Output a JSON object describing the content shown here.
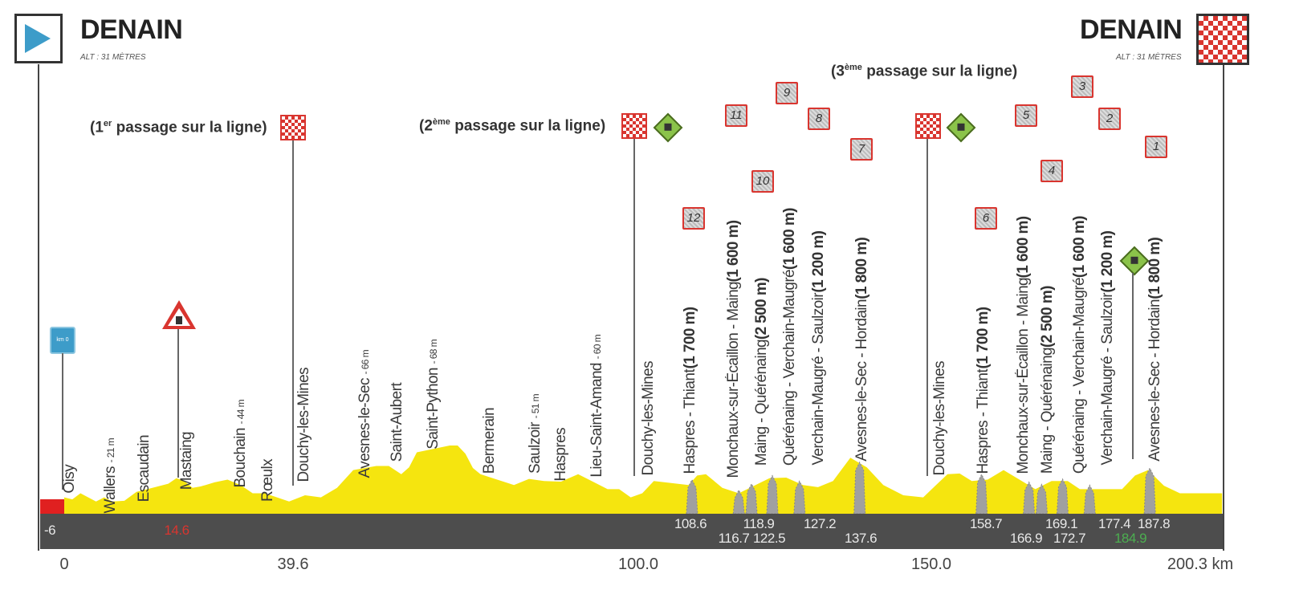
{
  "start": {
    "city": "DENAIN",
    "alt": "ALT : 31 MÈTRES"
  },
  "finish": {
    "city": "DENAIN",
    "alt": "ALT : 31 MÈTRES"
  },
  "passages": [
    {
      "pre": "(1",
      "sup": "er",
      "post": " passage sur la ligne)"
    },
    {
      "pre": "(2",
      "sup": "ème",
      "post": " passage sur la ligne)"
    },
    {
      "pre": "(3",
      "sup": "ème",
      "post": " passage sur la ligne)"
    }
  ],
  "km0_sign": "km 0",
  "towns": [
    "Oisy",
    "Wallers",
    "- 21 m",
    "Escaudain",
    "Mastaing",
    "Bouchain",
    "- 44 m",
    "Rœulx",
    "Douchy-les-Mines",
    "Avesnes-le-Sec",
    "- 66 m",
    "Saint-Aubert",
    "Saint-Python",
    "- 68 m",
    "Bermerain",
    "Saulzoir",
    "- 51 m",
    "Haspres",
    "Lieu-Saint-Amand",
    "- 60 m",
    "Douchy-les-Mines",
    "Douchy-les-Mines"
  ],
  "sectors": [
    {
      "num": "12",
      "name": "Haspres - Thiant",
      "len": "(1 700 m)"
    },
    {
      "num": "11",
      "name": "Monchaux-sur-Écaillon - Maing",
      "len": "(1 600 m)"
    },
    {
      "num": "10",
      "name": "Maing - Quérénaing",
      "len": "(2 500 m)"
    },
    {
      "num": "9",
      "name": "Quérénaing - Verchain-Maugré",
      "len": "(1 600 m)"
    },
    {
      "num": "8",
      "name": "Verchain-Maugré - Saulzoir",
      "len": "(1 200 m)"
    },
    {
      "num": "7",
      "name": "Avesnes-le-Sec - Hordain",
      "len": "(1 800 m)"
    },
    {
      "num": "6",
      "name": "Haspres - Thiant",
      "len": "(1 700 m)"
    },
    {
      "num": "5",
      "name": "Monchaux-sur-Écaillon - Maing",
      "len": "(1 600 m)"
    },
    {
      "num": "4",
      "name": "Maing - Quérénaing",
      "len": "(2 500 m)"
    },
    {
      "num": "3",
      "name": "Quérénaing - Verchain-Maugré",
      "len": "(1 600 m)"
    },
    {
      "num": "2",
      "name": "Verchain-Maugré - Saulzoir",
      "len": "(1 200 m)"
    },
    {
      "num": "1",
      "name": "Avesnes-le-Sec - Hordain",
      "len": "(1 800 m)"
    }
  ],
  "bar_labels": {
    "neutral": "-6",
    "level_crossing": "14.6",
    "cobbles": [
      "108.6",
      "116.7",
      "118.9",
      "122.5",
      "127.2",
      "137.6",
      "158.7",
      "166.9",
      "169.1",
      "172.7",
      "177.4",
      "187.8"
    ],
    "sprint": "184.9"
  },
  "axis": [
    "0",
    "39.6",
    "100.0",
    "150.0",
    "200.3 km"
  ],
  "colors": {
    "profile": "#f5e50f",
    "neutral": "#e02020",
    "bar": "#4d4d4d",
    "cobble": "#a0a0a0",
    "sprint": "#4caf50",
    "accent_red": "#d9352f",
    "start_blue": "#3d9cc9"
  },
  "chart_data": {
    "type": "area",
    "title": "DENAIN - DENAIN",
    "xlabel": "km",
    "xlim": [
      -6,
      200.3
    ],
    "profile": [
      [
        0,
        27
      ],
      [
        2.8,
        30
      ],
      [
        5.5,
        24
      ],
      [
        8.3,
        24
      ],
      [
        12.5,
        31
      ],
      [
        18,
        37
      ],
      [
        20.8,
        39
      ],
      [
        23.6,
        35
      ],
      [
        26,
        38
      ],
      [
        30.5,
        36
      ],
      [
        34.7,
        30
      ],
      [
        38.9,
        24
      ],
      [
        44.4,
        27
      ],
      [
        50,
        47
      ],
      [
        54,
        50
      ],
      [
        58.3,
        44
      ],
      [
        61,
        60
      ],
      [
        66.7,
        65
      ],
      [
        69.4,
        59
      ],
      [
        72,
        44
      ],
      [
        77.8,
        36
      ],
      [
        83,
        39
      ],
      [
        88.9,
        44
      ],
      [
        94,
        33
      ],
      [
        98,
        27
      ],
      [
        102,
        39
      ],
      [
        108,
        36
      ],
      [
        111,
        44
      ],
      [
        116.7,
        30
      ],
      [
        122,
        41
      ],
      [
        127.8,
        36
      ],
      [
        133,
        39
      ],
      [
        136,
        56
      ],
      [
        141.7,
        36
      ],
      [
        148.6,
        27
      ],
      [
        152.8,
        44
      ],
      [
        157,
        39
      ],
      [
        162.5,
        47
      ],
      [
        168,
        33
      ],
      [
        173.6,
        39
      ],
      [
        177.8,
        33
      ],
      [
        183,
        33
      ],
      [
        187.5,
        47
      ],
      [
        193,
        30
      ],
      [
        200.3,
        30
      ]
    ],
    "cobble_km": [
      108.6,
      116.7,
      118.9,
      122.5,
      127.2,
      137.6,
      158.7,
      166.9,
      169.1,
      172.7,
      177.4,
      187.8
    ]
  }
}
